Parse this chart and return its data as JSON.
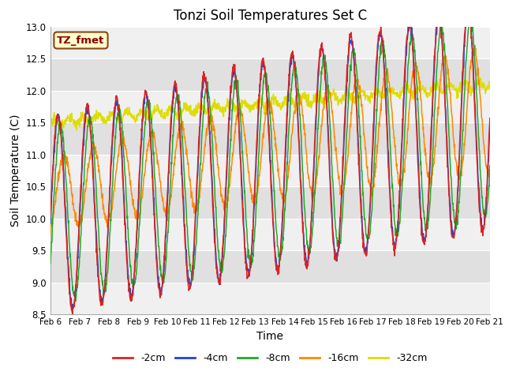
{
  "title": "Tonzi Soil Temperatures Set C",
  "xlabel": "Time",
  "ylabel": "Soil Temperature (C)",
  "ylim": [
    8.5,
    13.0
  ],
  "label_box_text": "TZ_fmet",
  "label_box_color": "#ffffcc",
  "label_box_edge": "#8b4513",
  "label_box_text_color": "#8b0000",
  "colors": {
    "-2cm": "#dd2222",
    "-4cm": "#2244cc",
    "-8cm": "#22aa22",
    "-16cm": "#ff8800",
    "-32cm": "#dddd00"
  },
  "legend_labels": [
    "-2cm",
    "-4cm",
    "-8cm",
    "-16cm",
    "-32cm"
  ],
  "legend_colors": [
    "#dd2222",
    "#2244cc",
    "#22aa22",
    "#ff8800",
    "#dddd00"
  ],
  "date_labels": [
    "Feb 6",
    "Feb 7",
    "Feb 8",
    "Feb 9",
    "Feb 10",
    "Feb 11",
    "Feb 12",
    "Feb 13",
    "Feb 14",
    "Feb 15",
    "Feb 16",
    "Feb 17",
    "Feb 18",
    "Feb 19",
    "Feb 20",
    "Feb 21"
  ],
  "band_color_light": "#f0f0f0",
  "band_color_dark": "#e0e0e0",
  "background_color": "#ffffff",
  "n_points": 1440
}
